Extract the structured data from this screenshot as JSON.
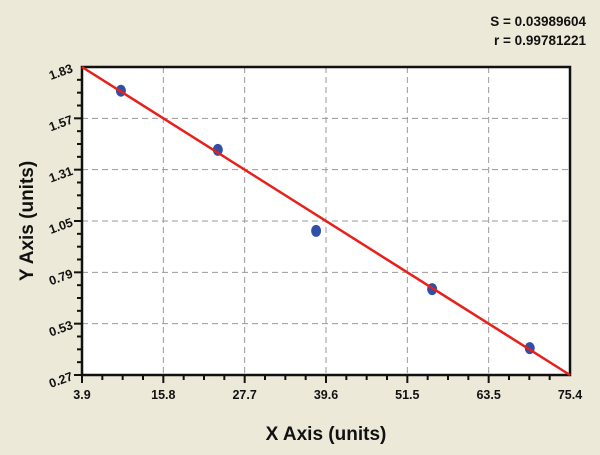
{
  "stats": {
    "s_label": "S = 0.03989604",
    "r_label": "r = 0.99781221"
  },
  "chart_data": {
    "type": "scatter",
    "xlabel": "X Axis (units)",
    "ylabel": "Y Axis (units)",
    "xlim": [
      3.9,
      75.4
    ],
    "ylim": [
      0.27,
      1.83
    ],
    "xticks": [
      "3.9",
      "15.8",
      "27.7",
      "39.6",
      "51.5",
      "63.5",
      "75.4"
    ],
    "yticks": [
      "0.27",
      "0.53",
      "0.79",
      "1.05",
      "1.31",
      "1.57",
      "1.83"
    ],
    "grid": true,
    "points": [
      {
        "x": 9.6,
        "y": 1.71
      },
      {
        "x": 23.8,
        "y": 1.41
      },
      {
        "x": 38.2,
        "y": 1.0
      },
      {
        "x": 55.2,
        "y": 0.705
      },
      {
        "x": 69.5,
        "y": 0.406
      }
    ],
    "fit_line": {
      "x": [
        3.9,
        75.4
      ],
      "y": [
        1.83,
        0.27
      ]
    },
    "colors": {
      "points": "#2f4fa8",
      "fit_line": "#e8201a",
      "background": "#ece9d8"
    }
  }
}
